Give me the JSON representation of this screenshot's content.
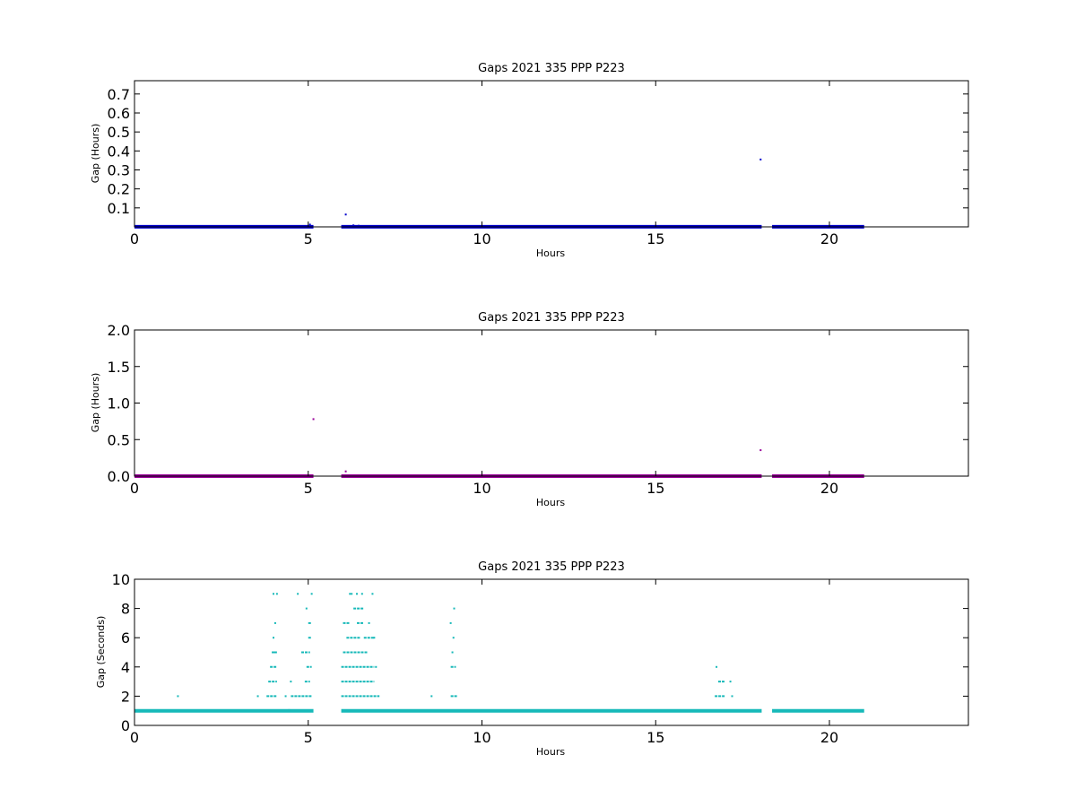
{
  "chart_data": [
    {
      "type": "scatter",
      "title": "Gaps 2021 335 PPP  P223",
      "xlabel": "Hours",
      "ylabel": "Gap (Hours)",
      "xlim": [
        0,
        24
      ],
      "ylim": [
        0,
        0.77
      ],
      "xticks": [
        0,
        5,
        10,
        15,
        20
      ],
      "yticks": [
        0.1,
        0.2,
        0.3,
        0.4,
        0.5,
        0.6,
        0.7
      ],
      "grid": false,
      "color": "#0000cc",
      "baseline": {
        "y": 0.0003,
        "segments": [
          [
            0,
            5.15
          ],
          [
            5.95,
            18.05
          ],
          [
            18.35,
            21.0
          ]
        ]
      },
      "points": [
        {
          "x": 6.08,
          "y": 0.065
        },
        {
          "x": 18.02,
          "y": 0.355
        },
        {
          "x": 5.05,
          "y": 0.012
        },
        {
          "x": 6.3,
          "y": 0.008
        },
        {
          "x": 6.45,
          "y": 0.006
        },
        {
          "x": 6.6,
          "y": 0.004
        }
      ]
    },
    {
      "type": "scatter",
      "title": "Gaps 2021 335 PPP  P223",
      "xlabel": "Hours",
      "ylabel": "Gap (Hours)",
      "xlim": [
        0,
        24
      ],
      "ylim": [
        0,
        2.0
      ],
      "xticks": [
        0,
        5,
        10,
        15,
        20
      ],
      "yticks": [
        0.0,
        0.5,
        1.0,
        1.5,
        2.0
      ],
      "grid": false,
      "color": "#990099",
      "baseline": {
        "y": 0.0003,
        "segments": [
          [
            0,
            5.15
          ],
          [
            5.95,
            18.05
          ],
          [
            18.35,
            21.0
          ]
        ]
      },
      "points": [
        {
          "x": 5.15,
          "y": 0.78
        },
        {
          "x": 6.08,
          "y": 0.065
        },
        {
          "x": 18.02,
          "y": 0.355
        }
      ]
    },
    {
      "type": "scatter",
      "title": "Gaps 2021 335 PPP  P223",
      "xlabel": "Hours",
      "ylabel": "Gap (Seconds)",
      "xlim": [
        0,
        24
      ],
      "ylim": [
        0,
        10
      ],
      "xticks": [
        0,
        5,
        10,
        15,
        20
      ],
      "yticks": [
        0,
        2,
        4,
        6,
        8,
        10
      ],
      "grid": false,
      "color": "#17b9b9",
      "baseline": {
        "y": 1,
        "segments": [
          [
            0,
            5.15
          ],
          [
            5.95,
            18.05
          ],
          [
            18.35,
            21.0
          ]
        ]
      },
      "bands": [
        {
          "y": 2,
          "ranges": [
            [
              3.8,
              4.1
            ],
            [
              4.5,
              5.1
            ],
            [
              5.95,
              7.05
            ],
            [
              9.1,
              9.3
            ],
            [
              16.7,
              17.0
            ]
          ]
        },
        {
          "y": 3,
          "ranges": [
            [
              3.85,
              4.1
            ],
            [
              4.9,
              5.05
            ],
            [
              5.95,
              6.9
            ],
            [
              16.8,
              17.0
            ]
          ]
        },
        {
          "y": 4,
          "ranges": [
            [
              3.9,
              4.1
            ],
            [
              4.95,
              5.1
            ],
            [
              5.95,
              6.9
            ],
            [
              9.1,
              9.25
            ]
          ]
        },
        {
          "y": 5,
          "ranges": [
            [
              3.95,
              4.1
            ],
            [
              4.8,
              5.05
            ],
            [
              6.0,
              6.7
            ]
          ]
        },
        {
          "y": 6,
          "ranges": [
            [
              5.0,
              5.1
            ],
            [
              6.1,
              6.5
            ],
            [
              6.6,
              6.9
            ]
          ]
        },
        {
          "y": 7,
          "ranges": [
            [
              5.0,
              5.1
            ],
            [
              6.0,
              6.2
            ],
            [
              6.4,
              6.6
            ]
          ]
        },
        {
          "y": 8,
          "ranges": [
            [
              6.3,
              6.6
            ]
          ]
        }
      ],
      "points": [
        {
          "x": 1.25,
          "y": 2
        },
        {
          "x": 3.55,
          "y": 2
        },
        {
          "x": 3.6,
          "y": 1
        },
        {
          "x": 8.55,
          "y": 2
        },
        {
          "x": 17.2,
          "y": 2
        },
        {
          "x": 17.15,
          "y": 3
        },
        {
          "x": 4.5,
          "y": 3
        },
        {
          "x": 4.35,
          "y": 2
        },
        {
          "x": 16.75,
          "y": 4
        },
        {
          "x": 4.05,
          "y": 7
        },
        {
          "x": 4.0,
          "y": 6
        },
        {
          "x": 4.05,
          "y": 5
        },
        {
          "x": 9.18,
          "y": 6
        },
        {
          "x": 9.15,
          "y": 5
        },
        {
          "x": 9.1,
          "y": 7
        },
        {
          "x": 9.2,
          "y": 8
        },
        {
          "x": 4.95,
          "y": 8
        },
        {
          "x": 4.7,
          "y": 9
        },
        {
          "x": 5.1,
          "y": 9
        },
        {
          "x": 4.0,
          "y": 9
        },
        {
          "x": 4.1,
          "y": 9
        },
        {
          "x": 6.2,
          "y": 9
        },
        {
          "x": 6.25,
          "y": 9
        },
        {
          "x": 6.4,
          "y": 9
        },
        {
          "x": 6.55,
          "y": 9
        },
        {
          "x": 6.85,
          "y": 9
        },
        {
          "x": 6.75,
          "y": 7
        },
        {
          "x": 6.95,
          "y": 4
        },
        {
          "x": 6.9,
          "y": 6
        },
        {
          "x": 4.45,
          "y": 1.05
        }
      ]
    }
  ]
}
